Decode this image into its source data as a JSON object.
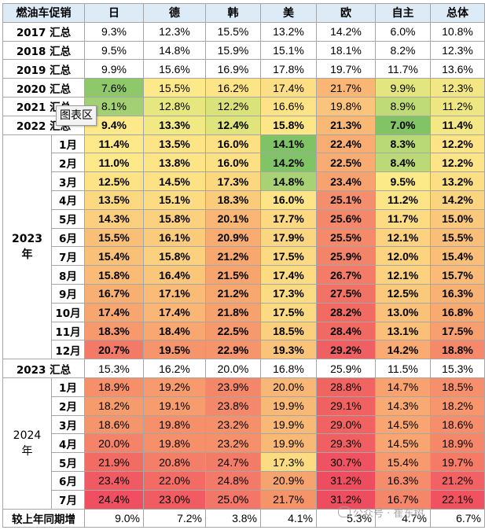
{
  "header": {
    "corner": "燃油车促销",
    "columns": [
      "日",
      "德",
      "韩",
      "美",
      "欧",
      "自主",
      "总体"
    ]
  },
  "top_rows": [
    {
      "label": "2017 汇总",
      "values": [
        "9.3%",
        "12.3%",
        "15.5%",
        "13.2%",
        "14.2%",
        "6.0%",
        "10.8%"
      ],
      "colors": [
        "#ffffff",
        "#ffffff",
        "#ffffff",
        "#ffffff",
        "#ffffff",
        "#ffffff",
        "#ffffff"
      ],
      "bold": false
    },
    {
      "label": "2018 汇总",
      "values": [
        "9.5%",
        "14.8%",
        "15.9%",
        "15.1%",
        "18.1%",
        "8.2%",
        "12.3%"
      ],
      "colors": [
        "#ffffff",
        "#ffffff",
        "#ffffff",
        "#ffffff",
        "#ffffff",
        "#ffffff",
        "#ffffff"
      ],
      "bold": false
    },
    {
      "label": "2019 汇总",
      "values": [
        "9.9%",
        "15.6%",
        "16.9%",
        "17.8%",
        "19.7%",
        "11.7%",
        "13.6%"
      ],
      "colors": [
        "#ffffff",
        "#ffffff",
        "#ffffff",
        "#ffffff",
        "#ffffff",
        "#ffffff",
        "#ffffff"
      ],
      "bold": false
    },
    {
      "label": "2020 汇总",
      "values": [
        "7.6%",
        "15.5%",
        "16.2%",
        "17.4%",
        "21.7%",
        "9.9%",
        "12.3%"
      ],
      "colors": [
        "#8fc86a",
        "#fde98a",
        "#fde487",
        "#fcdf84",
        "#f9b675",
        "#e3e67f",
        "#f2e784"
      ],
      "bold": false
    },
    {
      "label": "2021 汇总",
      "values": [
        "8.1%",
        "12.8%",
        "12.2%",
        "16.6%",
        "19.8%",
        "8.9%",
        "11.2%"
      ],
      "colors": [
        "#a3d072",
        "#e7e780",
        "#d9e27b",
        "#fde386",
        "#fac47c",
        "#bfdb78",
        "#eee682"
      ],
      "bold": false
    },
    {
      "label": "2022 汇总",
      "values": [
        "9.4%",
        "13.3%",
        "12.4%",
        "15.8%",
        "21.3%",
        "7.0%",
        "11.4%"
      ],
      "colors": [
        "#fde98a",
        "#f1e983",
        "#e0e47d",
        "#fde686",
        "#f9b975",
        "#82c366",
        "#f3e885"
      ],
      "bold": true
    }
  ],
  "year2023": {
    "year_label": "2023年",
    "rows": [
      {
        "label": "1月",
        "values": [
          "11.4%",
          "13.5%",
          "16.0%",
          "14.1%",
          "22.4%",
          "8.3%",
          "12.2%"
        ],
        "colors": [
          "#fde98a",
          "#fde587",
          "#fce184",
          "#7fc366",
          "#f9ad72",
          "#b8d976",
          "#fde487"
        ]
      },
      {
        "label": "2月",
        "values": [
          "11.0%",
          "13.8%",
          "16.0%",
          "14.2%",
          "22.5%",
          "8.4%",
          "12.2%"
        ],
        "colors": [
          "#fde98a",
          "#fde587",
          "#fce184",
          "#81c467",
          "#f9ac72",
          "#bbda77",
          "#fde487"
        ]
      },
      {
        "label": "3月",
        "values": [
          "12.5%",
          "14.5%",
          "17.3%",
          "14.8%",
          "23.4%",
          "9.5%",
          "13.2%"
        ],
        "colors": [
          "#fde386",
          "#fde285",
          "#fbd780",
          "#a9d274",
          "#f8a26f",
          "#fce988",
          "#fcdf84"
        ]
      },
      {
        "label": "4月",
        "values": [
          "13.5%",
          "15.1%",
          "18.3%",
          "16.0%",
          "25.1%",
          "11.2%",
          "14.2%"
        ],
        "colors": [
          "#fcd981",
          "#fcdb82",
          "#facb7b",
          "#fde486",
          "#f58e6c",
          "#fde487",
          "#fbd47f"
        ]
      },
      {
        "label": "5月",
        "values": [
          "14.3%",
          "15.8%",
          "20.1%",
          "17.7%",
          "25.6%",
          "11.7%",
          "15.0%"
        ],
        "colors": [
          "#fbcf7e",
          "#fbd07e",
          "#f9b674",
          "#fcd880",
          "#f5886a",
          "#fcdb82",
          "#fac77b"
        ]
      },
      {
        "label": "6月",
        "values": [
          "15.5%",
          "16.1%",
          "20.9%",
          "17.9%",
          "25.5%",
          "12.1%",
          "15.5%"
        ],
        "colors": [
          "#f9bf77",
          "#facb7b",
          "#f8ac71",
          "#fbd680",
          "#f5896a",
          "#fcd17f",
          "#f9be78"
        ]
      },
      {
        "label": "7月",
        "values": [
          "15.4%",
          "15.8%",
          "21.2%",
          "17.5%",
          "25.9%",
          "12.0%",
          "15.4%"
        ],
        "colors": [
          "#f9c077",
          "#fbd07e",
          "#f8a86f",
          "#fcda81",
          "#f48469",
          "#fcd37f",
          "#f9bf78"
        ]
      },
      {
        "label": "8月",
        "values": [
          "15.8%",
          "16.4%",
          "21.5%",
          "17.4%",
          "26.7%",
          "12.1%",
          "15.7%"
        ],
        "colors": [
          "#f9bb76",
          "#fac67a",
          "#f8a46f",
          "#fcdb81",
          "#f37b67",
          "#fcd17f",
          "#f9bb77"
        ]
      },
      {
        "label": "9月",
        "values": [
          "16.7%",
          "17.1%",
          "21.2%",
          "17.3%",
          "27.5%",
          "12.5%",
          "16.3%"
        ],
        "colors": [
          "#f8b072",
          "#f9bb76",
          "#f8a86f",
          "#fcdc82",
          "#f27365",
          "#fbc97c",
          "#f8b274"
        ]
      },
      {
        "label": "10月",
        "values": [
          "17.4%",
          "17.4%",
          "21.8%",
          "17.5%",
          "28.2%",
          "13.0%",
          "16.8%"
        ],
        "colors": [
          "#f7a66f",
          "#f9b675",
          "#f7a16e",
          "#fcda81",
          "#f16b63",
          "#fac17a",
          "#f8aa71"
        ]
      },
      {
        "label": "11月",
        "values": [
          "18.3%",
          "18.4%",
          "22.5%",
          "18.5%",
          "28.4%",
          "13.1%",
          "17.5%"
        ],
        "colors": [
          "#f6996c",
          "#f8a770",
          "#f6996c",
          "#facf7d",
          "#f16963",
          "#fabf79",
          "#f79f6e"
        ]
      },
      {
        "label": "12月",
        "values": [
          "20.7%",
          "19.5%",
          "22.9%",
          "19.3%",
          "29.2%",
          "14.2%",
          "18.8%"
        ],
        "colors": [
          "#f37a67",
          "#f6956b",
          "#f6946b",
          "#f9c47a",
          "#f06062",
          "#f9ab73",
          "#f5896a"
        ]
      }
    ]
  },
  "summary2023": {
    "label": "2023 汇总",
    "values": [
      "15.3%",
      "16.2%",
      "20.0%",
      "16.8%",
      "25.9%",
      "11.5%",
      "15.3%"
    ],
    "colors": [
      "#ffffff",
      "#ffffff",
      "#ffffff",
      "#ffffff",
      "#ffffff",
      "#ffffff",
      "#ffffff"
    ]
  },
  "year2024": {
    "year_label": "2024年",
    "rows": [
      {
        "label": "1月",
        "values": [
          "18.9%",
          "19.2%",
          "23.9%",
          "20.0%",
          "28.8%",
          "14.7%",
          "18.5%"
        ],
        "colors": [
          "#f5906a",
          "#f79a6d",
          "#f4876a",
          "#f8b776",
          "#f06562",
          "#f8a270",
          "#f68f6b"
        ]
      },
      {
        "label": "2月",
        "values": [
          "18.2%",
          "19.1%",
          "23.8%",
          "19.9%",
          "29.1%",
          "14.3%",
          "18.2%"
        ],
        "colors": [
          "#f69b6c",
          "#f79c6d",
          "#f4886a",
          "#f8b976",
          "#f06262",
          "#f9a972",
          "#f7956c"
        ]
      },
      {
        "label": "3月",
        "values": [
          "18.6%",
          "19.8%",
          "23.2%",
          "19.9%",
          "29.0%",
          "14.5%",
          "18.6%"
        ],
        "colors": [
          "#f5956b",
          "#f6906b",
          "#f5906b",
          "#f8b976",
          "#f06362",
          "#f9a571",
          "#f68e6b"
        ]
      },
      {
        "label": "4月",
        "values": [
          "20.0%",
          "19.8%",
          "23.2%",
          "19.9%",
          "29.3%",
          "14.5%",
          "18.9%"
        ],
        "colors": [
          "#f4836a",
          "#f6906b",
          "#f5906b",
          "#f8b976",
          "#f05f62",
          "#f9a571",
          "#f6886a"
        ]
      },
      {
        "label": "5月",
        "values": [
          "21.9%",
          "20.8%",
          "24.7%",
          "17.3%",
          "30.7%",
          "15.4%",
          "19.7%"
        ],
        "colors": [
          "#f26c64",
          "#f47f69",
          "#f37c68",
          "#fcdc82",
          "#ef5260",
          "#f79a6e",
          "#f57b67"
        ]
      },
      {
        "label": "6月",
        "values": [
          "23.4%",
          "22.0%",
          "24.8%",
          "20.9%",
          "31.2%",
          "16.3%",
          "21.2%"
        ],
        "colors": [
          "#f05a62",
          "#f26c65",
          "#f37a68",
          "#f6a46f",
          "#ee4d5f",
          "#f58c6b",
          "#f26163"
        ]
      },
      {
        "label": "7月",
        "values": [
          "24.4%",
          "23.0%",
          "25.0%",
          "21.7%",
          "31.2%",
          "16.7%",
          "22.1%"
        ],
        "colors": [
          "#ef4f60",
          "#f05c62",
          "#f37768",
          "#f59369",
          "#ee4d5f",
          "#f4866a",
          "#f0535f"
        ]
      }
    ]
  },
  "yoy": {
    "label": "较上年同期增",
    "values": [
      "9.0%",
      "7.2%",
      "3.8%",
      "4.1%",
      "5.3%",
      "4.7%",
      "6.7%"
    ]
  },
  "tooltip": "图表区",
  "watermark": "公众号 · 崔东树"
}
